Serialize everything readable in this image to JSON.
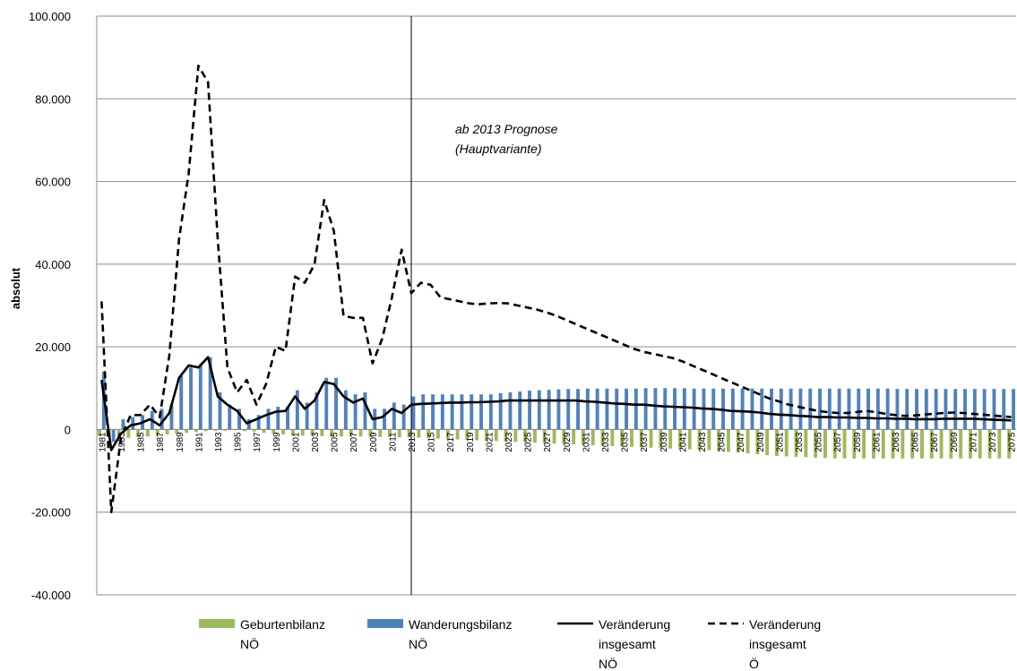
{
  "chart_data": {
    "type": "bar",
    "ylabel": "absolut",
    "ylim": [
      -40000,
      100000
    ],
    "y_ticks": [
      -40000,
      -20000,
      0,
      20000,
      40000,
      60000,
      80000,
      100000
    ],
    "y_tick_labels": [
      "-40.000",
      "-20.000",
      "0",
      "20.000",
      "40.000",
      "60.000",
      "80.000",
      "100.000"
    ],
    "grid": true,
    "categories": [
      "1981",
      "1982",
      "1983",
      "1984",
      "1985",
      "1986",
      "1987",
      "1988",
      "1989",
      "1990",
      "1991",
      "1992",
      "1993",
      "1994",
      "1995",
      "1996",
      "1997",
      "1998",
      "1999",
      "2000",
      "2001",
      "2002",
      "2003",
      "2004",
      "2005",
      "2006",
      "2007",
      "2008",
      "2009",
      "2010",
      "2011",
      "2012",
      "2013",
      "2014",
      "2015",
      "2016",
      "2017",
      "2018",
      "2019",
      "2020",
      "2021",
      "2022",
      "2023",
      "2024",
      "2025",
      "2026",
      "2027",
      "2028",
      "2029",
      "2030",
      "2031",
      "2032",
      "2033",
      "2034",
      "2035",
      "2036",
      "2037",
      "2038",
      "2039",
      "2040",
      "2041",
      "2042",
      "2043",
      "2044",
      "2045",
      "2046",
      "2047",
      "2048",
      "2049",
      "2050",
      "2051",
      "2052",
      "2053",
      "2054",
      "2055",
      "2056",
      "2057",
      "2058",
      "2059",
      "2060",
      "2061",
      "2062",
      "2063",
      "2064",
      "2065",
      "2066",
      "2067",
      "2068",
      "2069",
      "2070",
      "2071",
      "2072",
      "2073",
      "2074",
      "2075"
    ],
    "x_tick_labels": [
      "1981",
      "1983",
      "1985",
      "1987",
      "1989",
      "1991",
      "1993",
      "1995",
      "1997",
      "1999",
      "2001",
      "2003",
      "2005",
      "2007",
      "2009",
      "2011",
      "2013",
      "2015",
      "2017",
      "2019",
      "2021",
      "2023",
      "2025",
      "2027",
      "2029",
      "2031",
      "2033",
      "2035",
      "2037",
      "2039",
      "2041",
      "2043",
      "2045",
      "2047",
      "2049",
      "2051",
      "2053",
      "2055",
      "2057",
      "2059",
      "2061",
      "2063",
      "2065",
      "2067",
      "2069",
      "2071",
      "2073",
      "2075"
    ],
    "series": [
      {
        "name": "Geburtenbilanz NÖ",
        "kind": "bar",
        "color": "#9bbb59",
        "values": [
          -1500,
          -1800,
          -2000,
          -2000,
          -1800,
          -1700,
          -1500,
          -1200,
          -1000,
          -800,
          -600,
          -400,
          -300,
          -300,
          -200,
          -400,
          -500,
          -800,
          -1000,
          -1200,
          -1400,
          -1500,
          -1500,
          -1600,
          -1700,
          -1700,
          -1700,
          -1700,
          -1800,
          -1800,
          -1800,
          -1900,
          -1900,
          -2000,
          -2100,
          -2200,
          -2300,
          -2400,
          -2500,
          -2600,
          -2700,
          -2800,
          -2900,
          -3000,
          -3100,
          -3200,
          -3300,
          -3400,
          -3500,
          -3600,
          -3700,
          -3800,
          -3900,
          -4000,
          -4100,
          -4200,
          -4300,
          -4400,
          -4500,
          -4600,
          -4700,
          -4800,
          -4900,
          -5000,
          -5200,
          -5400,
          -5600,
          -5800,
          -6000,
          -6200,
          -6400,
          -6500,
          -6600,
          -6700,
          -6800,
          -6900,
          -7000,
          -7000,
          -7000,
          -7000,
          -7000,
          -7000,
          -7000,
          -7000,
          -7000,
          -7000,
          -7000,
          -7000,
          -7000,
          -7000,
          -7000,
          -7000,
          -7000,
          -7000,
          -7000
        ]
      },
      {
        "name": "Wanderungsbilanz NÖ",
        "kind": "bar",
        "color": "#4f81bd",
        "values": [
          14000,
          -3000,
          2500,
          3000,
          3500,
          4500,
          5000,
          6000,
          13000,
          15000,
          15500,
          17500,
          9000,
          6000,
          5000,
          2500,
          3500,
          5000,
          5500,
          5500,
          9500,
          6500,
          9000,
          12500,
          12500,
          9500,
          8500,
          9000,
          5000,
          5000,
          6500,
          6000,
          8000,
          8500,
          8500,
          8500,
          8500,
          8500,
          8500,
          8500,
          8500,
          8800,
          9000,
          9200,
          9400,
          9500,
          9600,
          9700,
          9800,
          9800,
          9900,
          9900,
          9900,
          9900,
          9900,
          9900,
          10000,
          10000,
          10000,
          10000,
          10000,
          9900,
          9900,
          9900,
          9900,
          9900,
          9900,
          9900,
          9900,
          9900,
          9900,
          9900,
          9900,
          9900,
          9900,
          9900,
          9900,
          9900,
          9900,
          9900,
          9900,
          9900,
          9800,
          9800,
          9800,
          9800,
          9800,
          9800,
          9800,
          9800,
          9800,
          9800,
          9800,
          9800,
          9800
        ]
      },
      {
        "name": "Veränderung insgesamt NÖ",
        "kind": "line",
        "style": "solid",
        "color": "#000000",
        "values": [
          12000,
          -5000,
          -1000,
          1000,
          1500,
          2500,
          1000,
          4000,
          12500,
          15500,
          15000,
          17500,
          8000,
          6000,
          4500,
          1500,
          2500,
          3500,
          4300,
          4500,
          8000,
          5000,
          7000,
          11500,
          11000,
          8000,
          6500,
          7500,
          2500,
          3000,
          5000,
          4000,
          6000,
          6200,
          6300,
          6400,
          6500,
          6500,
          6600,
          6600,
          6700,
          6800,
          7000,
          7000,
          7000,
          7000,
          7000,
          7000,
          7000,
          7000,
          6800,
          6700,
          6500,
          6300,
          6200,
          6000,
          6000,
          5800,
          5600,
          5500,
          5400,
          5300,
          5100,
          5000,
          4800,
          4500,
          4400,
          4300,
          4100,
          3800,
          3600,
          3500,
          3300,
          3200,
          3000,
          3000,
          2900,
          2900,
          2800,
          2800,
          2700,
          2700,
          2600,
          2600,
          2500,
          2500,
          2500,
          2600,
          2600,
          2600,
          2600,
          2500,
          2400,
          2300,
          2200
        ]
      },
      {
        "name": "Veränderung insgesamt Ö",
        "kind": "line",
        "style": "dashed",
        "color": "#000000",
        "values": [
          31000,
          -20000,
          -2000,
          3500,
          3500,
          6000,
          3000,
          18000,
          46000,
          62000,
          88000,
          84000,
          46000,
          15000,
          9000,
          12000,
          6000,
          11000,
          20000,
          19000,
          37000,
          35500,
          40000,
          55500,
          48000,
          27500,
          27000,
          27000,
          16000,
          22000,
          32000,
          43500,
          33000,
          35500,
          35000,
          32000,
          31500,
          31000,
          30500,
          30300,
          30500,
          30600,
          30500,
          30000,
          29500,
          29000,
          28300,
          27500,
          26500,
          25500,
          24500,
          23500,
          22500,
          21500,
          20500,
          19500,
          18800,
          18300,
          17800,
          17300,
          16500,
          15500,
          14500,
          13500,
          12500,
          11500,
          10500,
          9500,
          8500,
          7500,
          6800,
          6000,
          5500,
          5000,
          4500,
          4200,
          4000,
          4000,
          4200,
          4500,
          4200,
          3800,
          3500,
          3300,
          3400,
          3600,
          3800,
          4000,
          4100,
          4000,
          3800,
          3600,
          3400,
          3200,
          3000
        ]
      }
    ],
    "annotation": {
      "line1": "ab 2013 Prognose",
      "line2": "(Hauptvariante)",
      "at_category": "2013"
    }
  }
}
